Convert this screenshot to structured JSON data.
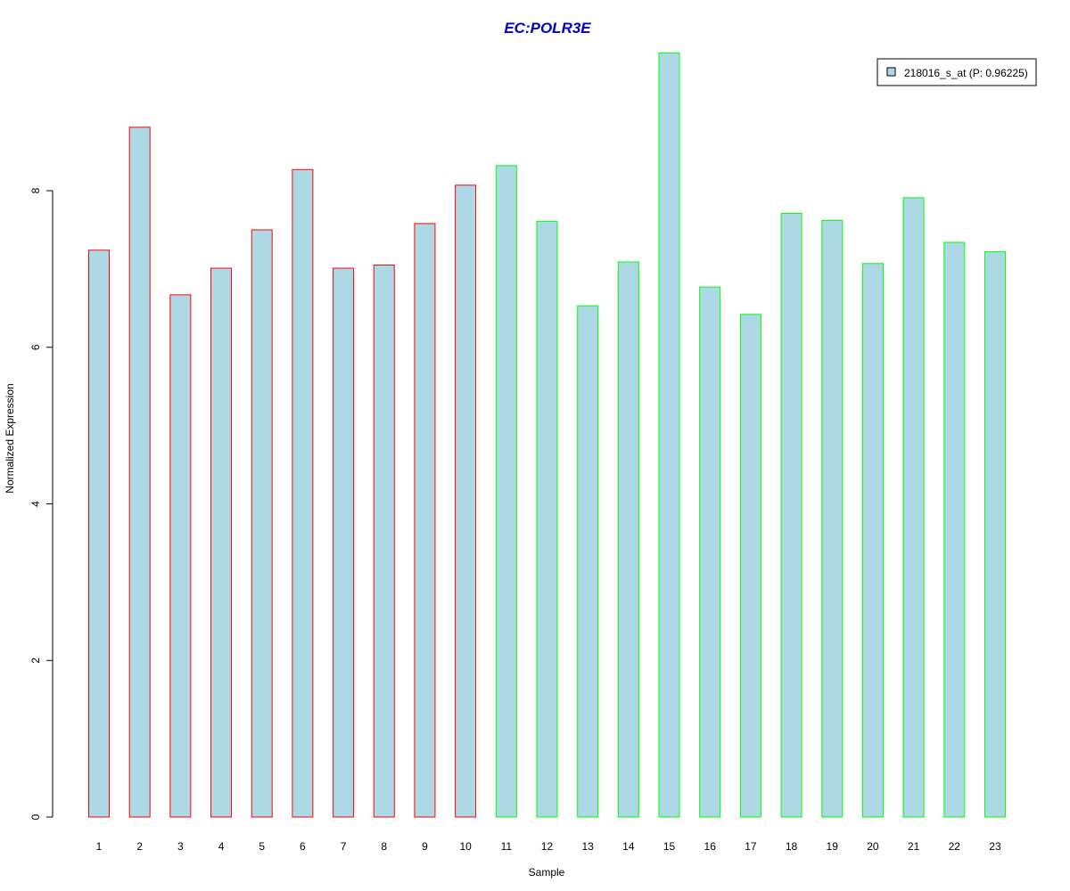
{
  "chart_data": {
    "type": "bar",
    "title": "EC:POLR3E",
    "xlabel": "Sample",
    "ylabel": "Normalized Expression",
    "categories": [
      "1",
      "2",
      "3",
      "4",
      "5",
      "6",
      "7",
      "8",
      "9",
      "10",
      "11",
      "12",
      "13",
      "14",
      "15",
      "16",
      "17",
      "18",
      "19",
      "20",
      "21",
      "22",
      "23"
    ],
    "series": [
      {
        "name": "218016_s_at (P: 0.96225)",
        "values": [
          7.24,
          8.81,
          6.67,
          7.01,
          7.5,
          8.27,
          7.01,
          7.05,
          7.58,
          8.07,
          8.32,
          7.61,
          6.53,
          7.09,
          9.76,
          6.77,
          6.42,
          7.71,
          7.62,
          7.07,
          7.91,
          7.34,
          7.22
        ]
      }
    ],
    "group_edge_colors": [
      "#ff0000",
      "#ff0000",
      "#ff0000",
      "#ff0000",
      "#ff0000",
      "#ff0000",
      "#ff0000",
      "#ff0000",
      "#ff0000",
      "#ff0000",
      "#00ff00",
      "#00ff00",
      "#00ff00",
      "#00ff00",
      "#00ff00",
      "#00ff00",
      "#00ff00",
      "#00ff00",
      "#00ff00",
      "#00ff00",
      "#00ff00",
      "#00ff00",
      "#00ff00"
    ],
    "bar_fill": "#add8e6",
    "title_color": "#0000cd",
    "y_ticks": [
      0,
      2,
      4,
      6,
      8
    ],
    "ylim": [
      0,
      9.85
    ],
    "legend_position": "top-right",
    "grid": false
  }
}
